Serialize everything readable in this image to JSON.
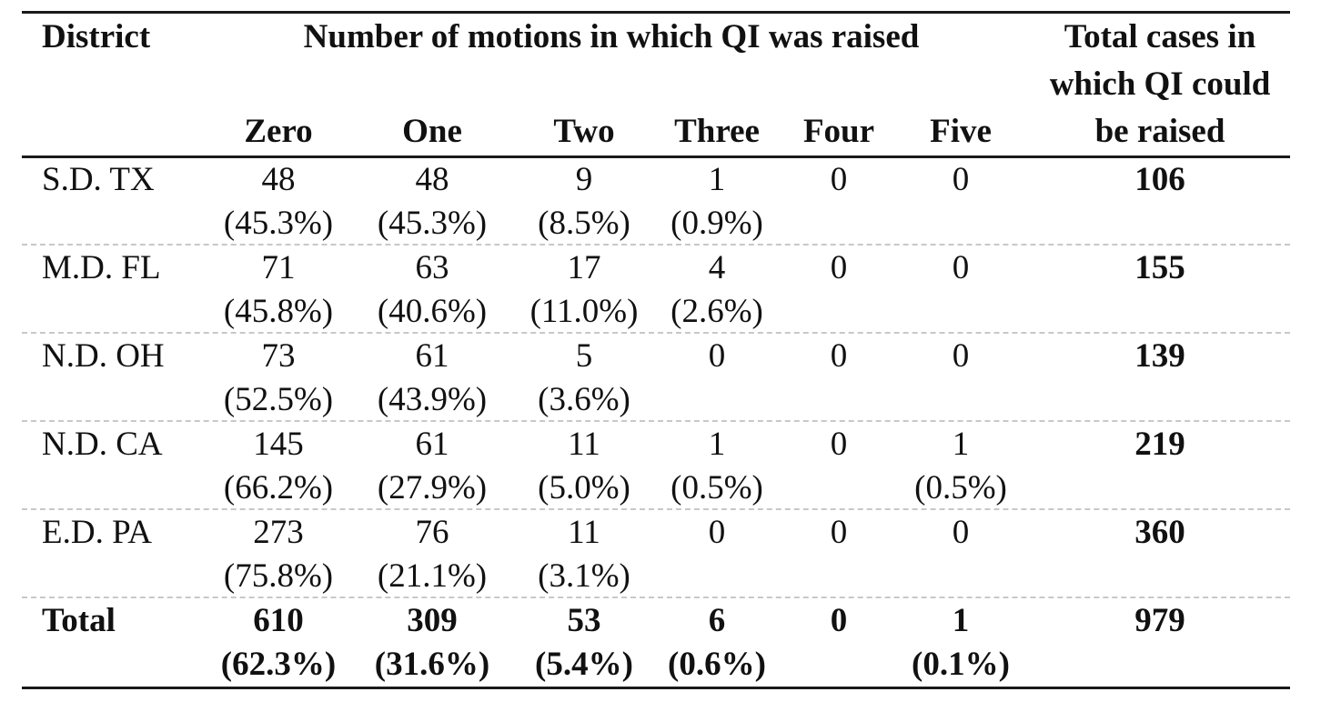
{
  "header": {
    "district": "District",
    "motions_group": "Number of motions in which QI was raised",
    "columns": [
      "Zero",
      "One",
      "Two",
      "Three",
      "Four",
      "Five"
    ],
    "total_lines": [
      "Total cases in",
      "which QI could",
      "be raised"
    ]
  },
  "rows": [
    {
      "district": "S.D. TX",
      "counts": [
        "48",
        "48",
        "9",
        "1",
        "0",
        "0"
      ],
      "percents": [
        "(45.3%)",
        "(45.3%)",
        "(8.5%)",
        "(0.9%)",
        "",
        ""
      ],
      "total": "106"
    },
    {
      "district": "M.D. FL",
      "counts": [
        "71",
        "63",
        "17",
        "4",
        "0",
        "0"
      ],
      "percents": [
        "(45.8%)",
        "(40.6%)",
        "(11.0%)",
        "(2.6%)",
        "",
        ""
      ],
      "total": "155"
    },
    {
      "district": "N.D. OH",
      "counts": [
        "73",
        "61",
        "5",
        "0",
        "0",
        "0"
      ],
      "percents": [
        "(52.5%)",
        "(43.9%)",
        "(3.6%)",
        "",
        "",
        ""
      ],
      "total": "139"
    },
    {
      "district": "N.D. CA",
      "counts": [
        "145",
        "61",
        "11",
        "1",
        "0",
        "1"
      ],
      "percents": [
        "(66.2%)",
        "(27.9%)",
        "(5.0%)",
        "(0.5%)",
        "",
        "(0.5%)"
      ],
      "total": "219"
    },
    {
      "district": "E.D. PA",
      "counts": [
        "273",
        "76",
        "11",
        "0",
        "0",
        "0"
      ],
      "percents": [
        "(75.8%)",
        "(21.1%)",
        "(3.1%)",
        "",
        "",
        ""
      ],
      "total": "360"
    }
  ],
  "total_row": {
    "label": "Total",
    "counts": [
      "610",
      "309",
      "53",
      "6",
      "0",
      "1"
    ],
    "percents": [
      "(62.3%)",
      "(31.6%)",
      "(5.4%)",
      "(0.6%)",
      "",
      "(0.1%)"
    ],
    "total": "979"
  }
}
